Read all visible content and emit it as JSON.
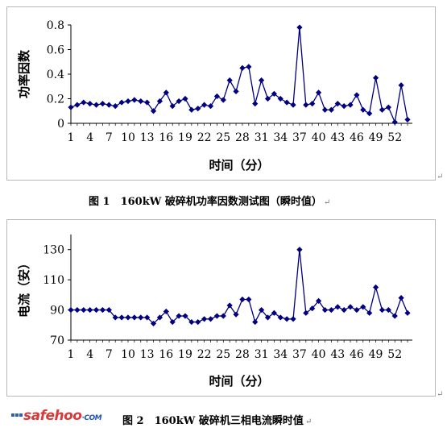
{
  "chart_data": [
    {
      "type": "line",
      "title": "",
      "xlabel": "时间（分）",
      "ylabel": "功率因数",
      "ylim": [
        0,
        0.8
      ],
      "yticks": [
        "0",
        "0.2",
        "0.4",
        "0.6",
        "0.8"
      ],
      "yticks_values": [
        0,
        0.2,
        0.4,
        0.6,
        0.8
      ],
      "xlim": [
        1,
        54
      ],
      "xticks": [
        "1",
        "4",
        "7",
        "10",
        "13",
        "16",
        "19",
        "22",
        "25",
        "28",
        "31",
        "34",
        "37",
        "40",
        "43",
        "46",
        "49",
        "52"
      ],
      "xticks_values": [
        1,
        4,
        7,
        10,
        13,
        16,
        19,
        22,
        25,
        28,
        31,
        34,
        37,
        40,
        43,
        46,
        49,
        52
      ],
      "marker": "diamond",
      "grid": false,
      "legend": "none",
      "color": "#000080",
      "x": [
        1,
        2,
        3,
        4,
        5,
        6,
        7,
        8,
        9,
        10,
        11,
        12,
        13,
        14,
        15,
        16,
        17,
        18,
        19,
        20,
        21,
        22,
        23,
        24,
        25,
        26,
        27,
        28,
        29,
        30,
        31,
        32,
        33,
        34,
        35,
        36,
        37,
        38,
        39,
        40,
        41,
        42,
        43,
        44,
        45,
        46,
        47,
        48,
        49,
        50,
        51,
        52,
        53,
        54
      ],
      "series": [
        {
          "values": [
            0.13,
            0.15,
            0.17,
            0.16,
            0.15,
            0.16,
            0.15,
            0.14,
            0.17,
            0.18,
            0.19,
            0.18,
            0.17,
            0.1,
            0.18,
            0.25,
            0.14,
            0.18,
            0.2,
            0.11,
            0.12,
            0.15,
            0.14,
            0.22,
            0.19,
            0.35,
            0.26,
            0.45,
            0.46,
            0.16,
            0.35,
            0.2,
            0.24,
            0.2,
            0.17,
            0.15,
            0.78,
            0.15,
            0.16,
            0.25,
            0.11,
            0.11,
            0.16,
            0.14,
            0.15,
            0.23,
            0.11,
            0.08,
            0.37,
            0.11,
            0.13,
            0.01,
            0.31,
            0.03
          ]
        }
      ]
    },
    {
      "type": "line",
      "title": "",
      "xlabel": "时间（分）",
      "ylabel": "电流（安）",
      "ylim": [
        70,
        140
      ],
      "yticks": [
        "70",
        "90",
        "110",
        "130"
      ],
      "yticks_values": [
        70,
        90,
        110,
        130
      ],
      "xlim": [
        1,
        54
      ],
      "xticks": [
        "1",
        "4",
        "7",
        "10",
        "13",
        "16",
        "19",
        "22",
        "25",
        "28",
        "31",
        "34",
        "37",
        "40",
        "43",
        "46",
        "49",
        "52"
      ],
      "xticks_values": [
        1,
        4,
        7,
        10,
        13,
        16,
        19,
        22,
        25,
        28,
        31,
        34,
        37,
        40,
        43,
        46,
        49,
        52
      ],
      "marker": "diamond",
      "grid": false,
      "legend": "none",
      "color": "#000080",
      "x": [
        1,
        2,
        3,
        4,
        5,
        6,
        7,
        8,
        9,
        10,
        11,
        12,
        13,
        14,
        15,
        16,
        17,
        18,
        19,
        20,
        21,
        22,
        23,
        24,
        25,
        26,
        27,
        28,
        29,
        30,
        31,
        32,
        33,
        34,
        35,
        36,
        37,
        38,
        39,
        40,
        41,
        42,
        43,
        44,
        45,
        46,
        47,
        48,
        49,
        50,
        51,
        52,
        53,
        54
      ],
      "series": [
        {
          "values": [
            90,
            90,
            90,
            90,
            90,
            90,
            90,
            85,
            85,
            85,
            85,
            85,
            85,
            81,
            85,
            89,
            82,
            86,
            86,
            82,
            82,
            84,
            84,
            86,
            86,
            93,
            87,
            97,
            97,
            82,
            90,
            85,
            88,
            85,
            84,
            84,
            130,
            88,
            91,
            96,
            90,
            90,
            92,
            90,
            92,
            90,
            92,
            88,
            105,
            90,
            90,
            86,
            98,
            88
          ]
        }
      ]
    }
  ],
  "captions": {
    "fig1": "图 1　160kW 破碎机功率因数测试图（瞬时值）",
    "fig2": "图 2　160kW 破碎机三相电流瞬时值",
    "return_mark": "↵"
  },
  "watermark": {
    "brand": "safehoo",
    "suffix": "·COM"
  }
}
